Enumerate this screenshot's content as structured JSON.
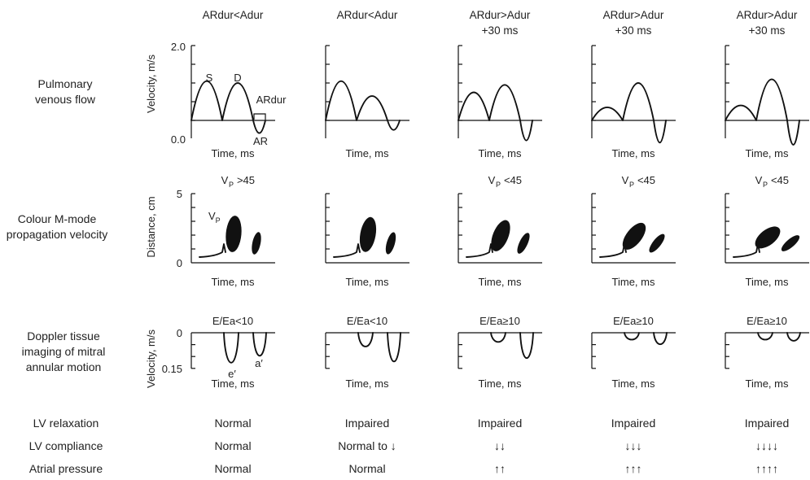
{
  "row_labels": {
    "pulmonary": [
      "Pulmonary",
      "venous flow"
    ],
    "mmode": [
      "Colour M-mode",
      "propagation velocity"
    ],
    "dti": [
      "Doppler tissue",
      "imaging of mitral",
      "annular motion"
    ]
  },
  "axis_labels": {
    "pv_y": "Velocity, m/s",
    "mm_y": "Distance, cm",
    "dti_y": "Velocity, m/s",
    "x": "Time, ms"
  },
  "ticks": {
    "pv_top": "2.0",
    "pv_bottom": "0.0",
    "mm_top": "5",
    "mm_bottom": "0",
    "dti_top": "0",
    "dti_bottom": "0.15"
  },
  "annotations": {
    "s": "S",
    "d": "D",
    "ardur": "ARdur",
    "ar": "AR",
    "vp": "V",
    "vp_sub": "P",
    "e_prime": "e′",
    "a_prime": "a′"
  },
  "columns": [
    {
      "header": [
        "ARdur<Adur"
      ],
      "vp_label": {
        "main": "V",
        "sub": "P",
        "rest": ">45"
      },
      "dti_label": "E/Ea<10",
      "relaxation": "Normal",
      "compliance": "Normal",
      "atrial_pressure": "Normal",
      "pv": {
        "s": 1.05,
        "d": 1.0,
        "ar": 0.6
      },
      "mm": {
        "blob_height": 3.1,
        "tilt_deg": 5
      },
      "dti": {
        "e": 0.13,
        "a": 0.1
      }
    },
    {
      "header": [
        "ARdur<Adur"
      ],
      "vp_label": {
        "main": "",
        "sub": "",
        "rest": ""
      },
      "dti_label": "E/Ea<10",
      "relaxation": "Impaired",
      "compliance": "Normal to ↓",
      "atrial_pressure": "Normal",
      "pv": {
        "s": 1.05,
        "d": 0.65,
        "ar": 0.45
      },
      "mm": {
        "blob_height": 3.0,
        "tilt_deg": 10
      },
      "dti": {
        "e": 0.06,
        "a": 0.125
      }
    },
    {
      "header": [
        "ARdur>Adur",
        "+30 ms"
      ],
      "vp_label": {
        "main": "V",
        "sub": "P",
        "rest": "<45"
      },
      "dti_label": "E/Ea≥10",
      "relaxation": "Impaired",
      "compliance": "↓↓",
      "atrial_pressure": "↑↑",
      "pv": {
        "s": 0.75,
        "d": 0.95,
        "ar": 0.95
      },
      "mm": {
        "blob_height": 2.8,
        "tilt_deg": 22
      },
      "dti": {
        "e": 0.04,
        "a": 0.11
      }
    },
    {
      "header": [
        "ARdur>Adur",
        "+30 ms"
      ],
      "vp_label": {
        "main": "V",
        "sub": "P",
        "rest": "<45"
      },
      "dti_label": "E/Ea≥10",
      "relaxation": "Impaired",
      "compliance": "↓↓↓",
      "atrial_pressure": "↑↑↑",
      "pv": {
        "s": 0.35,
        "d": 1.0,
        "ar": 1.05
      },
      "mm": {
        "blob_height": 2.7,
        "tilt_deg": 38
      },
      "dti": {
        "e": 0.03,
        "a": 0.05
      }
    },
    {
      "header": [
        "ARdur>Adur",
        "+30 ms"
      ],
      "vp_label": {
        "main": "V",
        "sub": "P",
        "rest": "<45"
      },
      "dti_label": "E/Ea≥10",
      "relaxation": "Impaired",
      "compliance": "↓↓↓↓",
      "atrial_pressure": "↑↑↑↑",
      "pv": {
        "s": 0.4,
        "d": 1.1,
        "ar": 1.15
      },
      "mm": {
        "blob_height": 2.5,
        "tilt_deg": 52
      },
      "dti": {
        "e": 0.03,
        "a": 0.035
      }
    }
  ],
  "bottom_labels": {
    "relaxation": "LV relaxation",
    "compliance": "LV compliance",
    "atrial_pressure": "Atrial pressure"
  }
}
